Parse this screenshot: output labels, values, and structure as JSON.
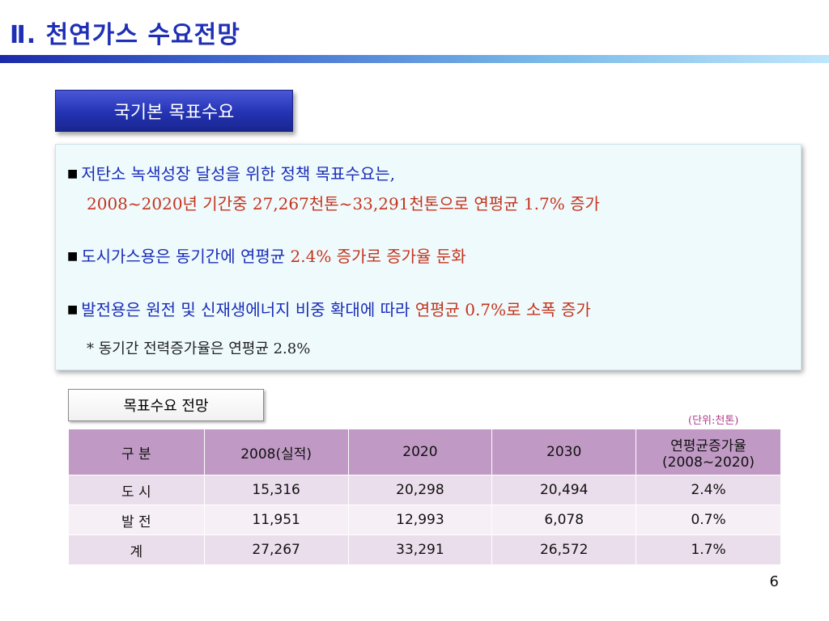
{
  "slide": {
    "title": "Ⅱ. 천연가스 수요전망",
    "section_label": "국기본 목표수요",
    "page_number": "6"
  },
  "bullets": {
    "b1_line1": "저탄소 녹색성장 달성을 위한 정책 목표수요는,",
    "b1_line2": "2008~2020년 기간중 27,267천톤~33,291천톤으로 연평균 1.7% 증가",
    "b2_part1": "도시가스용은 동기간에 연평균 ",
    "b2_part2": "2.4% 증가로 증가율 둔화",
    "b3_part1": "발전용은 원전 및 신재생에너지 비중 확대에 따라 ",
    "b3_part2": "연평균 0.7%로 소폭 증가",
    "note": "* 동기간 전력증가율은 연평균 2.8%"
  },
  "table": {
    "label": "목표수요 전망",
    "unit": "(단위:천톤)",
    "headers": [
      "구 분",
      "2008(실적)",
      "2020",
      "2030",
      "연평균증가율",
      "(2008~2020)"
    ],
    "rows": [
      [
        "도 시",
        "15,316",
        "20,298",
        "20,494",
        "2.4%"
      ],
      [
        "발 전",
        "11,951",
        "12,993",
        "6,078",
        "0.7%"
      ],
      [
        "계",
        "27,267",
        "33,291",
        "26,572",
        "1.7%"
      ]
    ]
  },
  "colors": {
    "title": "#1f2fb5",
    "accent_blue": "#1a2db8",
    "accent_red": "#c4341c",
    "table_header": "#c09ac5",
    "table_row": "#ebdeec"
  }
}
